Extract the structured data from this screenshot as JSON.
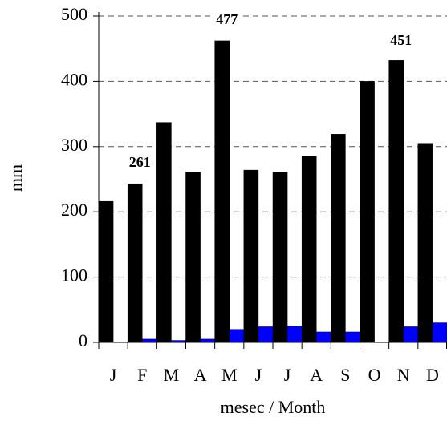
{
  "chart_data": {
    "type": "bar",
    "y_label": "mm",
    "x_label": "mesec / Month",
    "categories": [
      "J",
      "F",
      "M",
      "A",
      "M",
      "J",
      "J",
      "A",
      "S",
      "O",
      "N",
      "D"
    ],
    "series": [
      {
        "color": "#000000",
        "values": [
          216,
          243,
          337,
          261,
          462,
          264,
          261,
          285,
          319,
          400,
          432,
          305
        ]
      },
      {
        "color": "#0000ff",
        "values": [
          0,
          5,
          3,
          5,
          20,
          24,
          25,
          16,
          16,
          0,
          24,
          30
        ]
      }
    ],
    "annotations": [
      "261",
      "477",
      "451"
    ],
    "ylim": [
      0,
      500
    ],
    "yticks": [
      0,
      100,
      200,
      300,
      400,
      500
    ],
    "grid": true
  }
}
